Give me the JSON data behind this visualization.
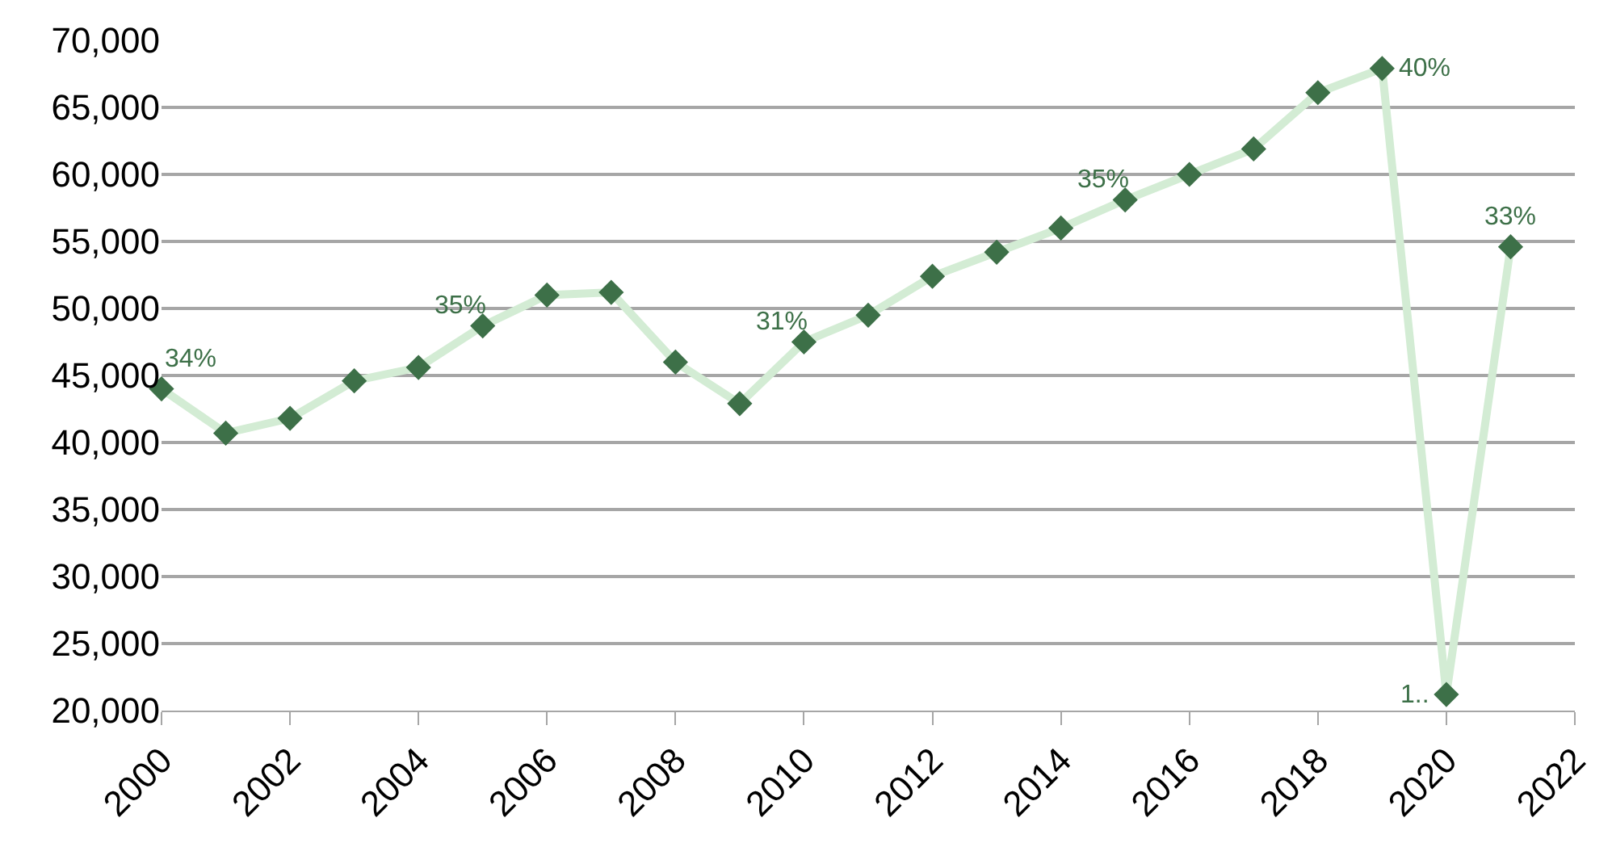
{
  "chart_data": {
    "type": "line",
    "x": [
      2000,
      2001,
      2002,
      2003,
      2004,
      2005,
      2006,
      2007,
      2008,
      2009,
      2010,
      2011,
      2012,
      2013,
      2014,
      2015,
      2016,
      2017,
      2018,
      2019,
      2020,
      2021
    ],
    "series": [
      {
        "color": "#d3ecd4",
        "colors": [
          "#3d7048",
          "#3d7048",
          "#3d7048",
          "#3d7048",
          "#3d7048",
          "#3d7048",
          "#3d7048",
          "#3d7048",
          "#3d7048",
          "#3d7048",
          "#3d7048",
          "#3d7048",
          "#3d7048",
          "#3d7048",
          "#3d7048",
          "#3d7048",
          "#3d7048",
          "#3d7048",
          "#3d7048",
          "#3d7048",
          "#3d7048",
          "#3d7048"
        ],
        "values": [
          44000,
          40700,
          41800,
          44600,
          45600,
          48700,
          51000,
          51200,
          46000,
          42900,
          47500,
          49500,
          52400,
          54200,
          56000,
          58100,
          60000,
          61900,
          66100,
          67900,
          21200,
          54600
        ]
      }
    ],
    "annotations": [
      {
        "text": "34%",
        "x": 2000,
        "y": 44000
      },
      {
        "text": "35%",
        "x": 2005,
        "y": 48700
      },
      {
        "text": "31%",
        "x": 2010,
        "y": 47500
      },
      {
        "text": "35%",
        "x": 2015,
        "y": 58100
      },
      {
        "text": "40%",
        "x": 2019,
        "y": 67900
      },
      {
        "text": "1..",
        "x": 2020,
        "y": 21200
      },
      {
        "text": "33%",
        "x": 2021,
        "y": 54600
      }
    ],
    "xlim": [
      2000,
      2022
    ],
    "xticks": [
      2000,
      2002,
      2004,
      2006,
      2008,
      2010,
      2012,
      2014,
      2016,
      2018,
      2020,
      2022
    ],
    "ylim": [
      20000,
      70000
    ],
    "yticks": [
      {
        "value": 20000,
        "label": "20,000"
      },
      {
        "value": 25000,
        "label": "25,000"
      },
      {
        "value": 30000,
        "label": "30,000"
      },
      {
        "value": 35000,
        "label": "35,000"
      },
      {
        "value": 40000,
        "label": "40,000"
      },
      {
        "value": 45000,
        "label": "45,000"
      },
      {
        "value": 50000,
        "label": "50,000"
      },
      {
        "value": 55000,
        "label": "55,000"
      },
      {
        "value": 60000,
        "label": "60,000"
      },
      {
        "value": 65000,
        "label": "65,000"
      },
      {
        "value": 70000,
        "label": "70,000"
      }
    ],
    "grid": "y",
    "marker": "diamond",
    "line_style": "solid",
    "legend": false
  }
}
